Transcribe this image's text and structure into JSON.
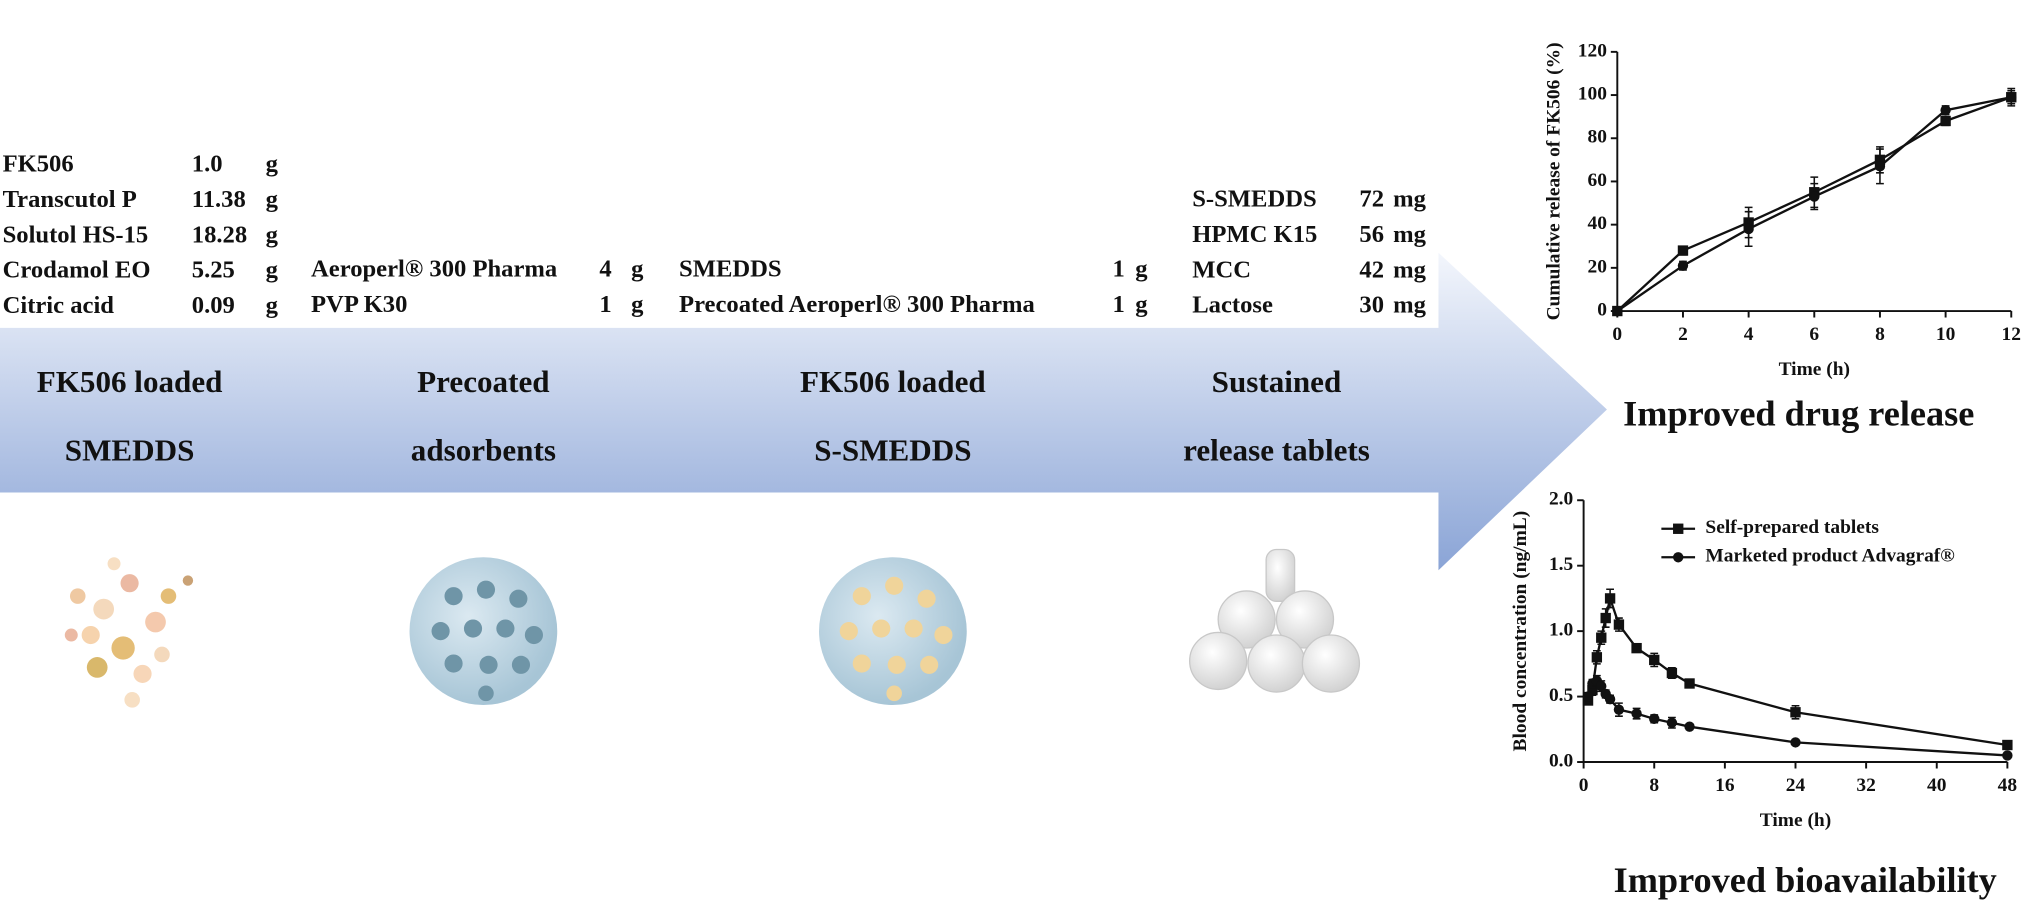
{
  "formulations": [
    {
      "rows": [
        [
          "FK506",
          "1.0",
          "g"
        ],
        [
          "Transcutol P",
          "11.38",
          "g"
        ],
        [
          "Solutol HS-15",
          "18.28",
          "g"
        ],
        [
          "Crodamol EO",
          "5.25",
          "g"
        ],
        [
          "Citric acid",
          "0.09",
          "g"
        ]
      ]
    },
    {
      "rows": [
        [
          "Aeroperl® 300 Pharma",
          "4",
          "g"
        ],
        [
          "PVP K30",
          "1",
          "g"
        ]
      ]
    },
    {
      "rows": [
        [
          "SMEDDS",
          "1",
          "g"
        ],
        [
          "Precoated Aeroperl® 300 Pharma",
          "1",
          "g"
        ]
      ]
    },
    {
      "rows": [
        [
          "S-SMEDDS",
          "72",
          "mg"
        ],
        [
          "HPMC K15",
          "56",
          "mg"
        ],
        [
          "MCC",
          "42",
          "mg"
        ],
        [
          "Lactose",
          "30",
          "mg"
        ]
      ]
    }
  ],
  "stages": [
    {
      "lines": [
        "FK506 loaded",
        "SMEDDS"
      ]
    },
    {
      "lines": [
        "Precoated",
        "adsorbents"
      ]
    },
    {
      "lines": [
        "FK506 loaded",
        "S-SMEDDS"
      ]
    },
    {
      "lines": [
        "Sustained",
        "release tablets"
      ]
    }
  ],
  "chart_data": [
    {
      "type": "line",
      "caption": "Improved drug release",
      "xlabel": "Time (h)",
      "ylabel": "Cumulative release of FK506 (%)",
      "x": [
        0,
        2,
        4,
        6,
        8,
        10,
        12
      ],
      "series": [
        {
          "color": "#111111",
          "marker": "square",
          "values": [
            0,
            28,
            41,
            55,
            70,
            88,
            99
          ],
          "errors": [
            0,
            2,
            7,
            7,
            6,
            2,
            4
          ]
        },
        {
          "color": "#111111",
          "marker": "circle",
          "values": [
            0,
            21,
            38,
            53,
            67,
            93,
            99
          ],
          "errors": [
            0,
            2,
            8,
            6,
            8,
            2,
            3
          ]
        }
      ],
      "xlim": [
        0,
        12
      ],
      "xticks": [
        0,
        2,
        4,
        6,
        8,
        10,
        12
      ],
      "ylim": [
        0,
        120
      ],
      "yticks": [
        0,
        20,
        40,
        60,
        80,
        100,
        120
      ]
    },
    {
      "type": "line",
      "caption": "Improved  bioavailability",
      "xlabel": "Time (h)",
      "ylabel": "Blood concentration (ng/mL)",
      "x": [
        0.5,
        1,
        1.5,
        2,
        2.5,
        3,
        4,
        6,
        8,
        10,
        12,
        24,
        48
      ],
      "series": [
        {
          "name": "Self-prepared tablets",
          "color": "#111111",
          "marker": "square",
          "values": [
            0.47,
            0.55,
            0.8,
            0.95,
            1.1,
            1.25,
            1.05,
            0.87,
            0.78,
            0.68,
            0.6,
            0.38,
            0.13
          ],
          "errors": [
            0.03,
            0.04,
            0.05,
            0.05,
            0.07,
            0.07,
            0.05,
            0.03,
            0.05,
            0.04,
            0.03,
            0.05,
            0.02
          ]
        },
        {
          "name": "Marketed product Advagraf®",
          "color": "#111111",
          "marker": "circle",
          "values": [
            0.5,
            0.6,
            0.62,
            0.58,
            0.52,
            0.48,
            0.4,
            0.37,
            0.33,
            0.3,
            0.27,
            0.15,
            0.05
          ],
          "errors": [
            0.03,
            0.03,
            0.04,
            0.04,
            0.03,
            0.03,
            0.05,
            0.04,
            0.03,
            0.04,
            0.02,
            0.01,
            0.01
          ]
        }
      ],
      "legend": "upper right",
      "xlim": [
        0,
        48
      ],
      "xticks": [
        0,
        8,
        16,
        24,
        32,
        40,
        48
      ],
      "ylim": [
        0,
        2
      ],
      "yticks": [
        {
          "value": 0,
          "label": "0.0"
        },
        {
          "value": 0.5,
          "label": "0.5"
        },
        {
          "value": 1,
          "label": "1.0"
        },
        {
          "value": 1.5,
          "label": "1.5"
        },
        {
          "value": 2,
          "label": "2.0"
        }
      ]
    }
  ]
}
